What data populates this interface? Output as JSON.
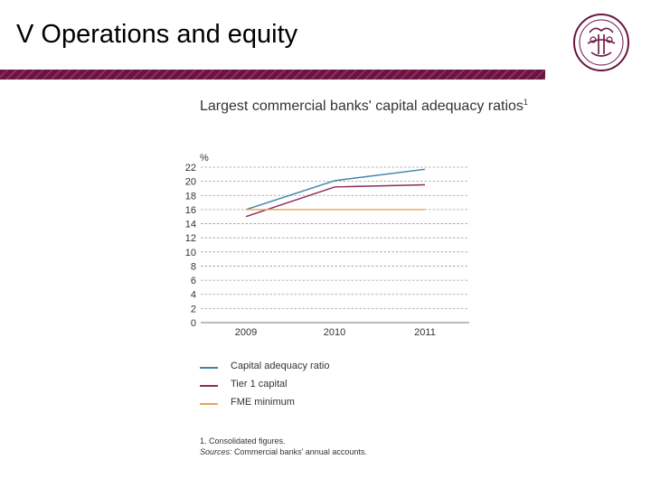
{
  "slide": {
    "title": "V Operations and equity"
  },
  "colors": {
    "banner": "#6b1440",
    "seal": "#6b1440"
  },
  "chart_data": {
    "type": "line",
    "title": "Largest commercial banks' capital adequacy ratios",
    "title_footnote_marker": "1",
    "ylabel": "%",
    "ylim": [
      0,
      22
    ],
    "yticks": [
      0,
      2,
      4,
      6,
      8,
      10,
      12,
      14,
      16,
      18,
      20,
      22
    ],
    "categories": [
      "2009",
      "2010",
      "2011"
    ],
    "grid": true,
    "legend_position": "below",
    "series": [
      {
        "name": "Capital adequacy ratio",
        "color": "#3f84a8",
        "values": [
          16.0,
          20.1,
          21.7
        ]
      },
      {
        "name": "Tier 1 capital",
        "color": "#8e2a5c",
        "values": [
          15.0,
          19.2,
          19.5
        ]
      },
      {
        "name": "FME minimum",
        "color": "#e8a45a",
        "values": [
          16.0,
          16.0,
          16.0
        ]
      }
    ],
    "footnote": "1. Consolidated figures.",
    "sources_label": "Sources:",
    "sources_text": "Commercial banks' annual accounts."
  }
}
